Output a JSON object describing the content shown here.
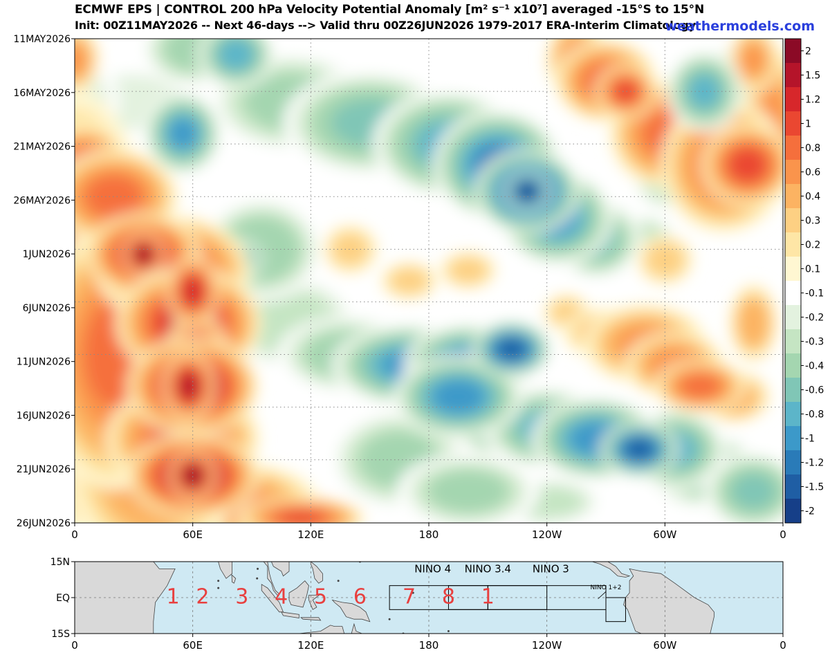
{
  "header": {
    "title": "ECMWF EPS | CONTROL 200 hPa Velocity Potential Anomaly [m² s⁻¹ x10⁷] averaged -15°S to 15°N",
    "subtitle": "Init: 00Z11MAY2026 -- Next 46-days --> Valid thru 00Z26JUN2026 1979-2017 ERA-Interim Climatology",
    "brand": "weathermodels.com"
  },
  "chart_data": [
    {
      "type": "heatmap",
      "title": "ECMWF EPS | CONTROL 200 hPa Velocity Potential Anomaly [m² s⁻¹ x10⁷] averaged -15°S to 15°N",
      "x_ticks": [
        "0",
        "60E",
        "120E",
        "180",
        "120W",
        "60W",
        "0"
      ],
      "x_range_deg": [
        0,
        360
      ],
      "y_ticks": [
        "11MAY2026",
        "16MAY2026",
        "21MAY2026",
        "26MAY2026",
        "1JUN2026",
        "6JUN2026",
        "11JUN2026",
        "16JUN2026",
        "21JUN2026",
        "26JUN2026"
      ],
      "y_range": [
        "11MAY2026",
        "26JUN2026"
      ],
      "colorbar": {
        "labels": [
          "2",
          "1.5",
          "1.2",
          "1",
          "0.8",
          "0.6",
          "0.4",
          "0.3",
          "0.2",
          "0.1",
          "-0.1",
          "-0.2",
          "-0.3",
          "-0.4",
          "-0.6",
          "-0.8",
          "-1",
          "-1.2",
          "-1.5",
          "-2"
        ],
        "colors": [
          "#8b0a26",
          "#b5142a",
          "#d7272b",
          "#ea4731",
          "#f56f3c",
          "#fa944c",
          "#fcb362",
          "#fdd083",
          "#fee6a6",
          "#fff7d2",
          "#ffffff",
          "#e3f2df",
          "#c5e5c3",
          "#a4d6b0",
          "#80c6b6",
          "#5cb5c9",
          "#3c99c9",
          "#2a7bb8",
          "#1f5ea4",
          "#163f88"
        ]
      },
      "features": [
        {
          "kind": "positive",
          "lon": 35,
          "day": 20.5,
          "value": 2.0
        },
        {
          "kind": "positive",
          "lon": 58,
          "day": 33,
          "value": 1.6
        },
        {
          "kind": "positive",
          "lon": 60,
          "day": 41.5,
          "value": 2.0
        },
        {
          "kind": "positive",
          "lon": 342,
          "day": 12,
          "value": 1.0
        },
        {
          "kind": "positive",
          "lon": 280,
          "day": 5,
          "value": 1.0
        },
        {
          "kind": "positive",
          "lon": 318,
          "day": 33,
          "value": 0.8
        },
        {
          "kind": "negative",
          "lon": 230,
          "day": 14.5,
          "value": -2.0
        },
        {
          "kind": "negative",
          "lon": 222,
          "day": 29.5,
          "value": -1.5
        },
        {
          "kind": "negative",
          "lon": 287,
          "day": 39,
          "value": -1.5
        },
        {
          "kind": "negative",
          "lon": 55,
          "day": 9,
          "value": -1.0
        },
        {
          "kind": "negative",
          "lon": 82,
          "day": 1.5,
          "value": -0.8
        }
      ]
    },
    {
      "type": "map",
      "x_ticks": [
        "0",
        "60E",
        "120E",
        "180",
        "120W",
        "60W",
        "0"
      ],
      "y_ticks": [
        "15N",
        "EQ",
        "15S"
      ],
      "region_labels": [
        "1",
        "2",
        "3",
        "4",
        "5",
        "6",
        "7",
        "8",
        "1"
      ],
      "region_lons": [
        50,
        65,
        85,
        105,
        125,
        145,
        170,
        190,
        210
      ],
      "region_color": "#e8403f",
      "nino_labels": [
        "NINO 4",
        "NINO 3.4",
        "NINO 3",
        "NINO 1+2"
      ],
      "nino_boxes": [
        {
          "name": "NINO 4",
          "lon1": 160,
          "lon2": 210,
          "lat1": 5,
          "lat2": -5
        },
        {
          "name": "NINO 3.4",
          "lon1": 190,
          "lon2": 240,
          "lat1": 5,
          "lat2": -5
        },
        {
          "name": "NINO 3",
          "lon1": 210,
          "lon2": 270,
          "lat1": 5,
          "lat2": -5
        },
        {
          "name": "NINO 1+2",
          "lon1": 270,
          "lon2": 280,
          "lat1": 0,
          "lat2": -10
        }
      ],
      "ocean_color": "#cfe9f3",
      "land_color": "#d9d9d9"
    }
  ]
}
